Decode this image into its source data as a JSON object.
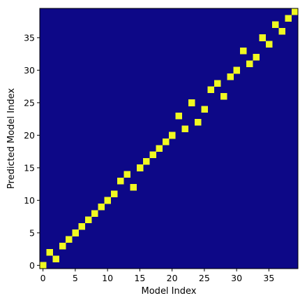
{
  "chart_data": {
    "type": "heatmap",
    "xlabel": "Model Index",
    "ylabel": "Predicted Model Index",
    "xlim": [
      -0.5,
      39.5
    ],
    "ylim": [
      -0.5,
      39.5
    ],
    "x_ticks": [
      0,
      5,
      10,
      15,
      20,
      25,
      30,
      35
    ],
    "y_ticks": [
      0,
      5,
      10,
      15,
      20,
      25,
      30,
      35
    ],
    "grid": false,
    "background_color": "#0d0887",
    "highlight_color": "#f0f921",
    "points": [
      [
        0,
        0
      ],
      [
        1,
        2
      ],
      [
        2,
        1
      ],
      [
        3,
        3
      ],
      [
        4,
        4
      ],
      [
        5,
        5
      ],
      [
        6,
        6
      ],
      [
        7,
        7
      ],
      [
        8,
        8
      ],
      [
        9,
        9
      ],
      [
        10,
        10
      ],
      [
        11,
        11
      ],
      [
        12,
        13
      ],
      [
        13,
        14
      ],
      [
        14,
        12
      ],
      [
        15,
        15
      ],
      [
        16,
        16
      ],
      [
        17,
        17
      ],
      [
        18,
        18
      ],
      [
        19,
        19
      ],
      [
        20,
        20
      ],
      [
        21,
        23
      ],
      [
        22,
        21
      ],
      [
        23,
        25
      ],
      [
        24,
        22
      ],
      [
        25,
        24
      ],
      [
        26,
        27
      ],
      [
        27,
        28
      ],
      [
        28,
        26
      ],
      [
        29,
        29
      ],
      [
        30,
        30
      ],
      [
        31,
        33
      ],
      [
        32,
        31
      ],
      [
        33,
        32
      ],
      [
        34,
        35
      ],
      [
        35,
        34
      ],
      [
        36,
        37
      ],
      [
        37,
        36
      ],
      [
        38,
        38
      ],
      [
        39,
        39
      ]
    ]
  }
}
